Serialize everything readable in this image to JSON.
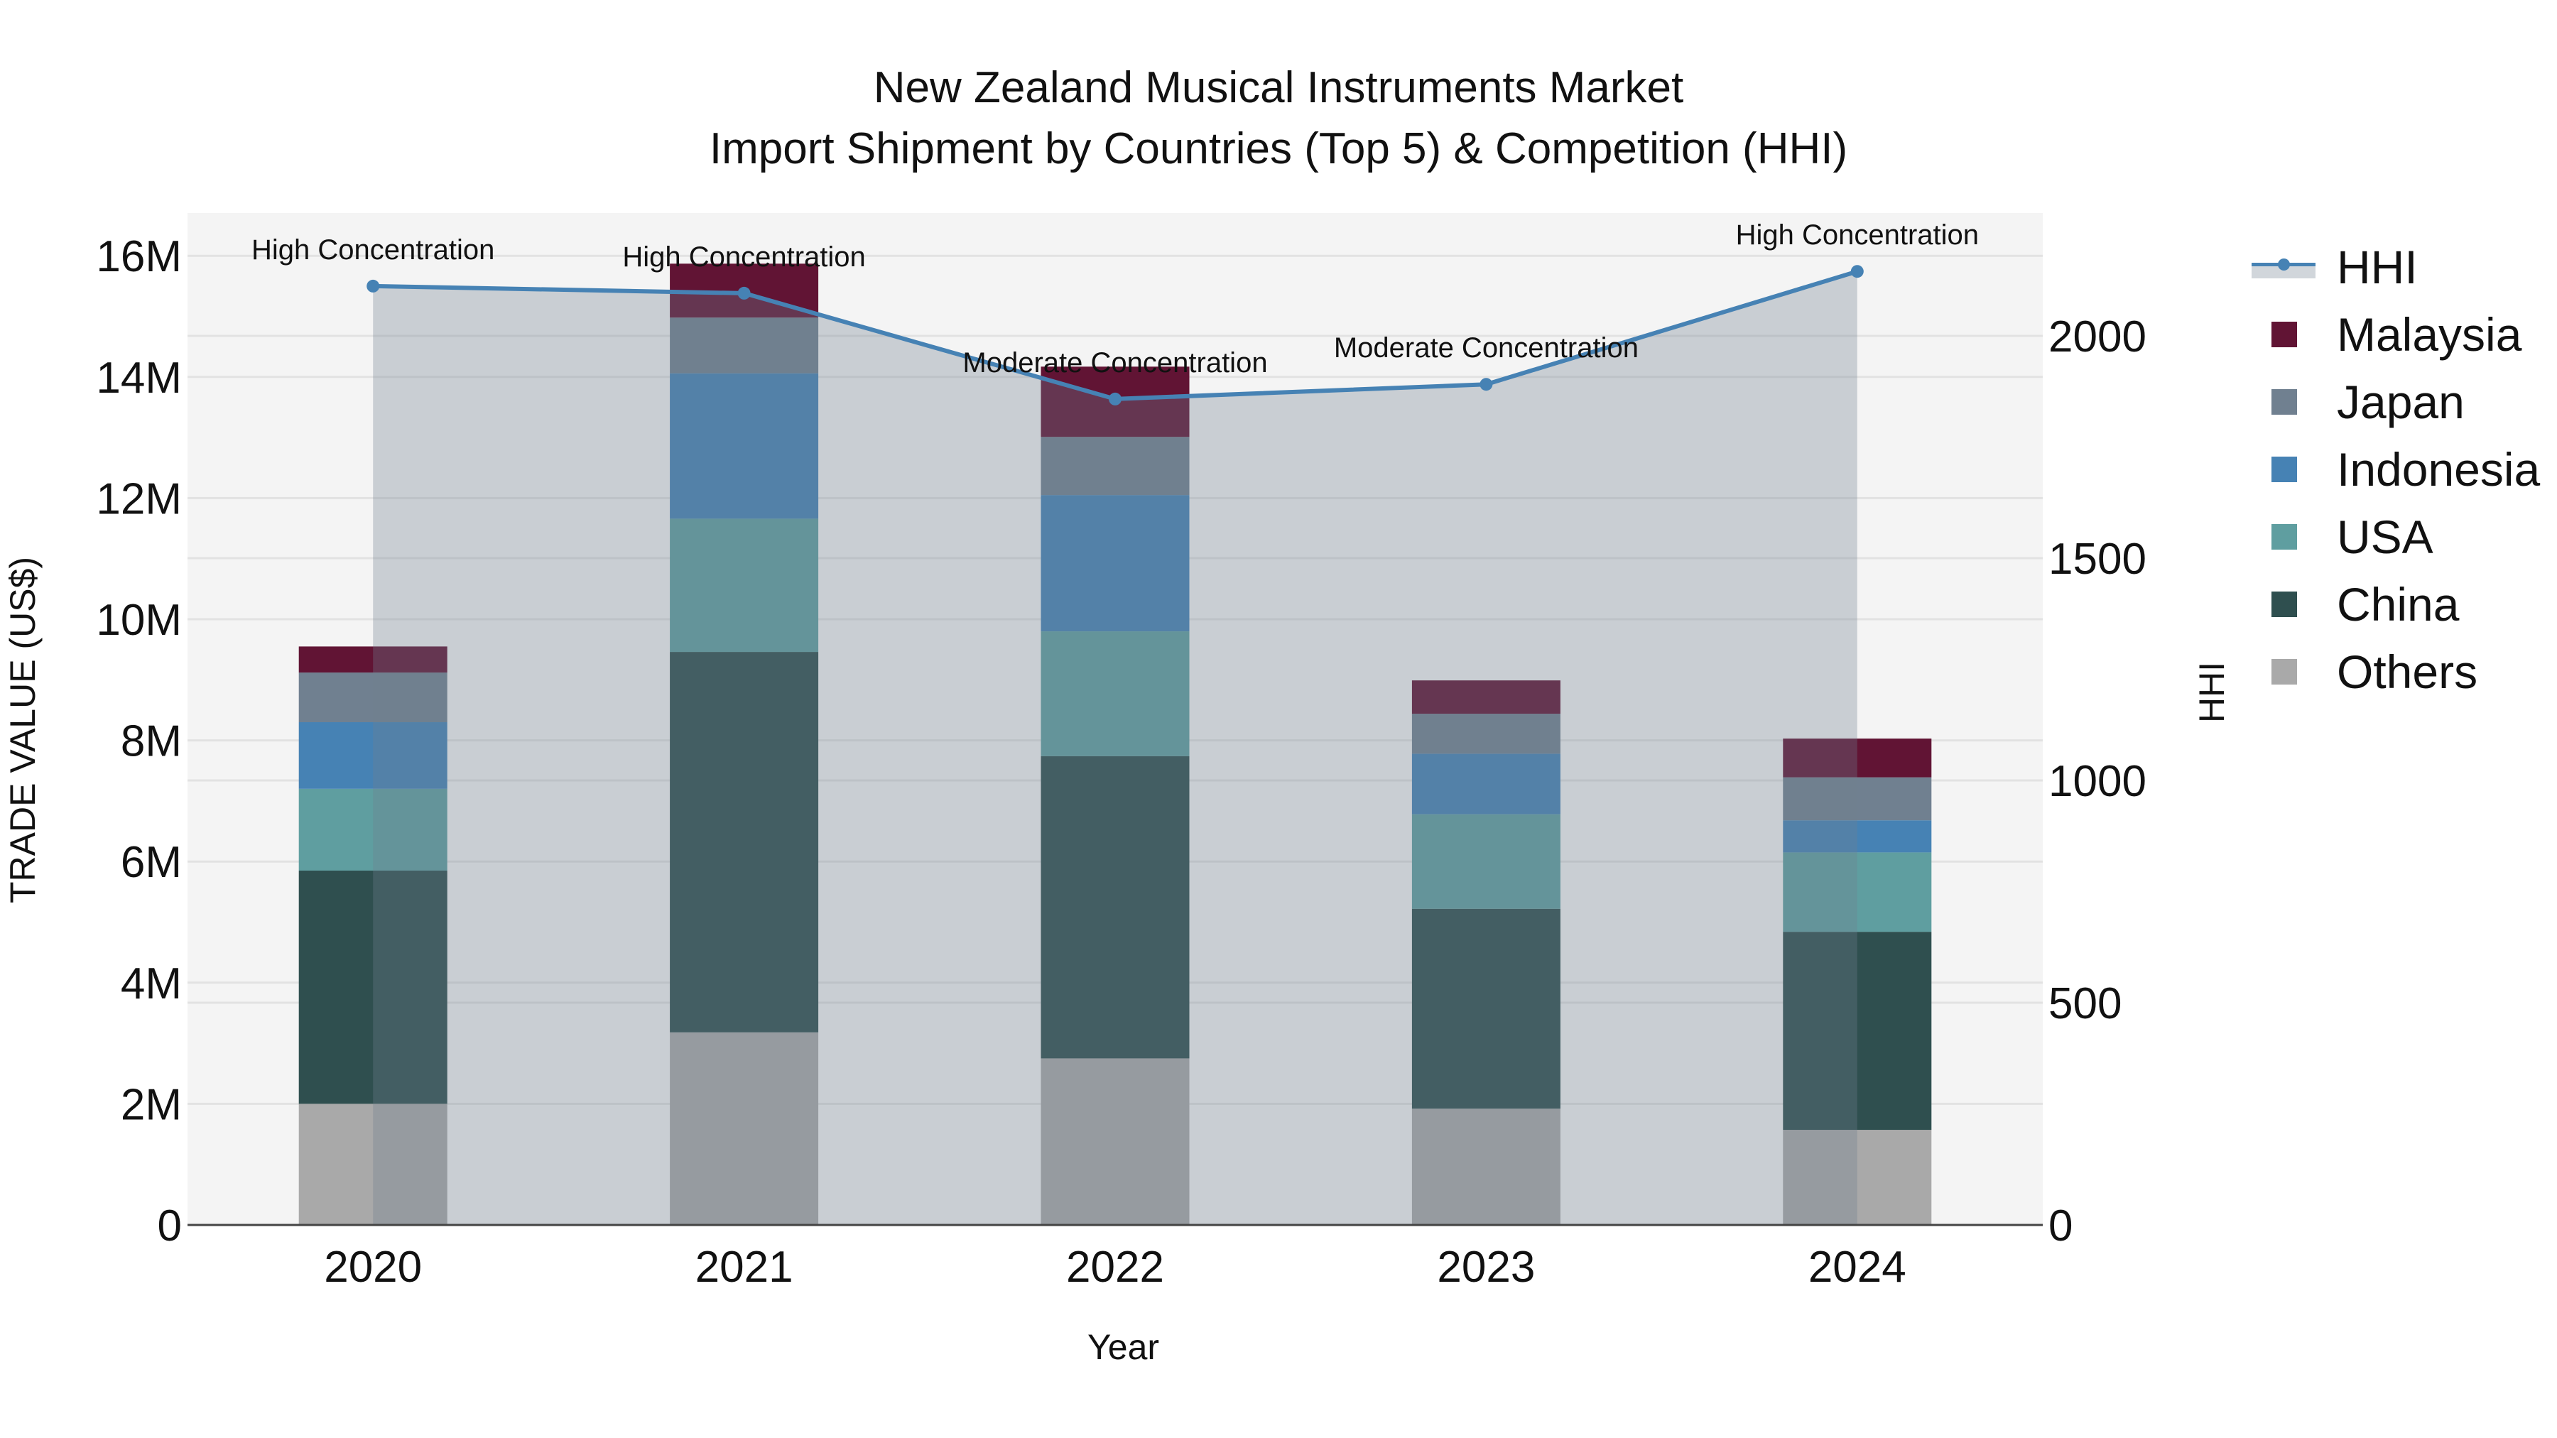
{
  "title": {
    "line1": "New Zealand Musical Instruments Market",
    "line2": "Import Shipment by Countries (Top 5) & Competition (HHI)"
  },
  "axes": {
    "x_title": "Year",
    "y_left_title": "TRADE VALUE (US$)",
    "y_right_title": "HHI",
    "y_left_ticks": [
      "0",
      "2M",
      "4M",
      "6M",
      "8M",
      "10M",
      "12M",
      "14M",
      "16M"
    ],
    "y_right_ticks": [
      "0",
      "500",
      "1000",
      "1500",
      "2000"
    ]
  },
  "legend": [
    {
      "label": "HHI",
      "type": "line",
      "color": "#4682B4"
    },
    {
      "label": "Malaysia",
      "type": "bar",
      "color": "#611434"
    },
    {
      "label": "Japan",
      "type": "bar",
      "color": "#708090"
    },
    {
      "label": "Indonesia",
      "type": "bar",
      "color": "#4682B4"
    },
    {
      "label": "USA",
      "type": "bar",
      "color": "#5F9EA0"
    },
    {
      "label": "China",
      "type": "bar",
      "color": "#2F4F4F"
    },
    {
      "label": "Others",
      "type": "bar",
      "color": "#A9A9A9"
    }
  ],
  "chart_data": {
    "type": "bar",
    "stacked": true,
    "title": "New Zealand Musical Instruments Market Import Shipment by Countries (Top 5) & Competition (HHI)",
    "xlabel": "Year",
    "ylabel": "TRADE VALUE (US$)",
    "y2label": "HHI",
    "categories": [
      "2020",
      "2021",
      "2022",
      "2023",
      "2024"
    ],
    "ylim": [
      0,
      16.7
    ],
    "y_unit": "M US$",
    "y2lim": [
      0,
      2275
    ],
    "grid": true,
    "legend_position": "right",
    "series": [
      {
        "name": "Others",
        "color": "#A9A9A9",
        "values": [
          2.0,
          3.18,
          2.75,
          1.92,
          1.57
        ]
      },
      {
        "name": "China",
        "color": "#2F4F4F",
        "values": [
          3.85,
          6.28,
          4.99,
          3.3,
          3.27
        ]
      },
      {
        "name": "USA",
        "color": "#5F9EA0",
        "values": [
          1.35,
          2.2,
          2.06,
          1.56,
          1.31
        ]
      },
      {
        "name": "Indonesia",
        "color": "#4682B4",
        "values": [
          1.1,
          2.4,
          2.25,
          1.0,
          0.53
        ]
      },
      {
        "name": "Japan",
        "color": "#708090",
        "values": [
          0.82,
          0.92,
          0.96,
          0.66,
          0.71
        ]
      },
      {
        "name": "Malaysia",
        "color": "#611434",
        "values": [
          0.43,
          0.89,
          1.16,
          0.55,
          0.64
        ]
      }
    ],
    "line_series": {
      "name": "HHI",
      "axis": "right",
      "color": "#4682B4",
      "fill": "tozeroy",
      "values": [
        2112,
        2096,
        1858,
        1891,
        2145
      ],
      "annotations": [
        "High Concentration",
        "High Concentration",
        "Moderate Concentration",
        "Moderate Concentration",
        "High Concentration"
      ]
    }
  }
}
